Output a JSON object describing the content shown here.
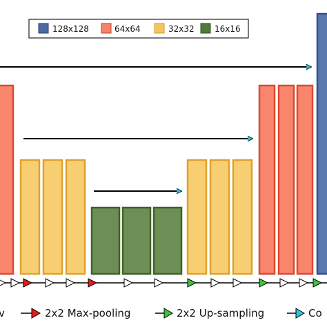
{
  "legend": {
    "items": [
      {
        "label": "128x128",
        "color": "#4a6ba3"
      },
      {
        "label": "64x64",
        "color": "#f4836a"
      },
      {
        "label": "32x32",
        "color": "#f6c461"
      },
      {
        "label": "16x16",
        "color": "#4e7a3a"
      }
    ]
  },
  "bottom_legend": {
    "conv_fragment": "v",
    "maxpool_label": "2x2 Max-pooling",
    "upsample_label": "2x2 Up-sampling",
    "concat_fragment": "Co"
  },
  "colors": {
    "res128_fill": "#5a78ab",
    "res128_stroke": "#36508a",
    "res64_fill": "#f9866c",
    "res64_stroke": "#d84a32",
    "res32_fill": "#f7cf72",
    "res32_stroke": "#e0a12c",
    "res16_fill": "#6d8f55",
    "res16_stroke": "#3f6228",
    "maxpool_arrow": "#e41a1c",
    "upsample_arrow": "#3cc43c",
    "skip_arrow": "#2ec4d6"
  },
  "icons": [
    "white-triangle-arrow-icon",
    "red-triangle-arrow-icon",
    "green-triangle-arrow-icon",
    "cyan-triangle-arrow-icon"
  ]
}
